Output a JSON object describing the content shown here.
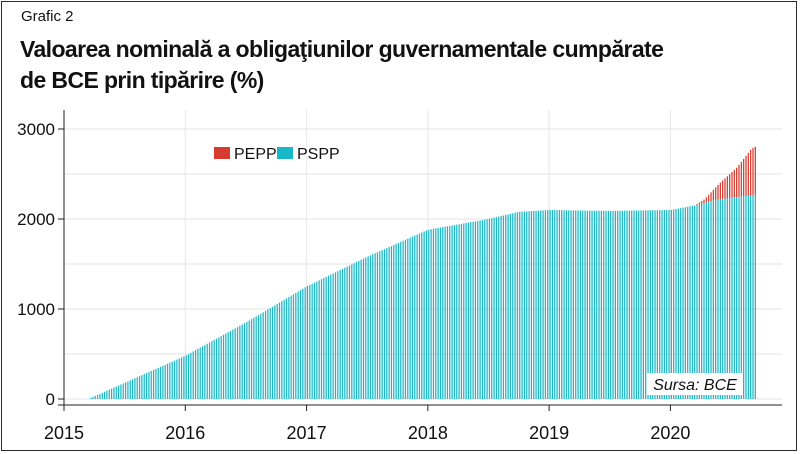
{
  "figure": {
    "label": "Grafic 2",
    "title_line1": "Valoarea nominală  a obligaţiunilor guvernamentale cumpărate",
    "title_line2": "de BCE prin tipărire (%)",
    "source": "Sursa: BCE"
  },
  "chart_data": {
    "type": "bar",
    "stacked": true,
    "title": "Valoarea nominală  a obligaţiunilor guvernamentale cumpărate de BCE prin tipărire (%)",
    "xlabel": "",
    "ylabel": "",
    "x_ticks": [
      "2015",
      "2016",
      "2017",
      "2018",
      "2019",
      "2020"
    ],
    "y_ticks": [
      "0",
      "1000",
      "2000",
      "3000"
    ],
    "xlim": [
      2015.0,
      2020.92
    ],
    "ylim": [
      0,
      3000
    ],
    "grid": true,
    "legend_position": "top-left",
    "series": [
      {
        "name": "PEPP",
        "color": "#d73a2e",
        "anchors": [
          [
            2015.0,
            0
          ],
          [
            2020.2,
            0
          ],
          [
            2020.28,
            40
          ],
          [
            2020.4,
            170
          ],
          [
            2020.55,
            330
          ],
          [
            2020.67,
            520
          ],
          [
            2020.71,
            540
          ]
        ]
      },
      {
        "name": "PSPP",
        "color": "#19b8c8",
        "anchors": [
          [
            2015.2,
            0
          ],
          [
            2015.5,
            180
          ],
          [
            2016.0,
            480
          ],
          [
            2016.5,
            850
          ],
          [
            2017.0,
            1250
          ],
          [
            2017.5,
            1580
          ],
          [
            2018.0,
            1880
          ],
          [
            2018.5,
            2000
          ],
          [
            2018.75,
            2080
          ],
          [
            2019.0,
            2100
          ],
          [
            2019.5,
            2090
          ],
          [
            2020.0,
            2100
          ],
          [
            2020.2,
            2150
          ],
          [
            2020.4,
            2220
          ],
          [
            2020.71,
            2270
          ]
        ]
      }
    ]
  }
}
